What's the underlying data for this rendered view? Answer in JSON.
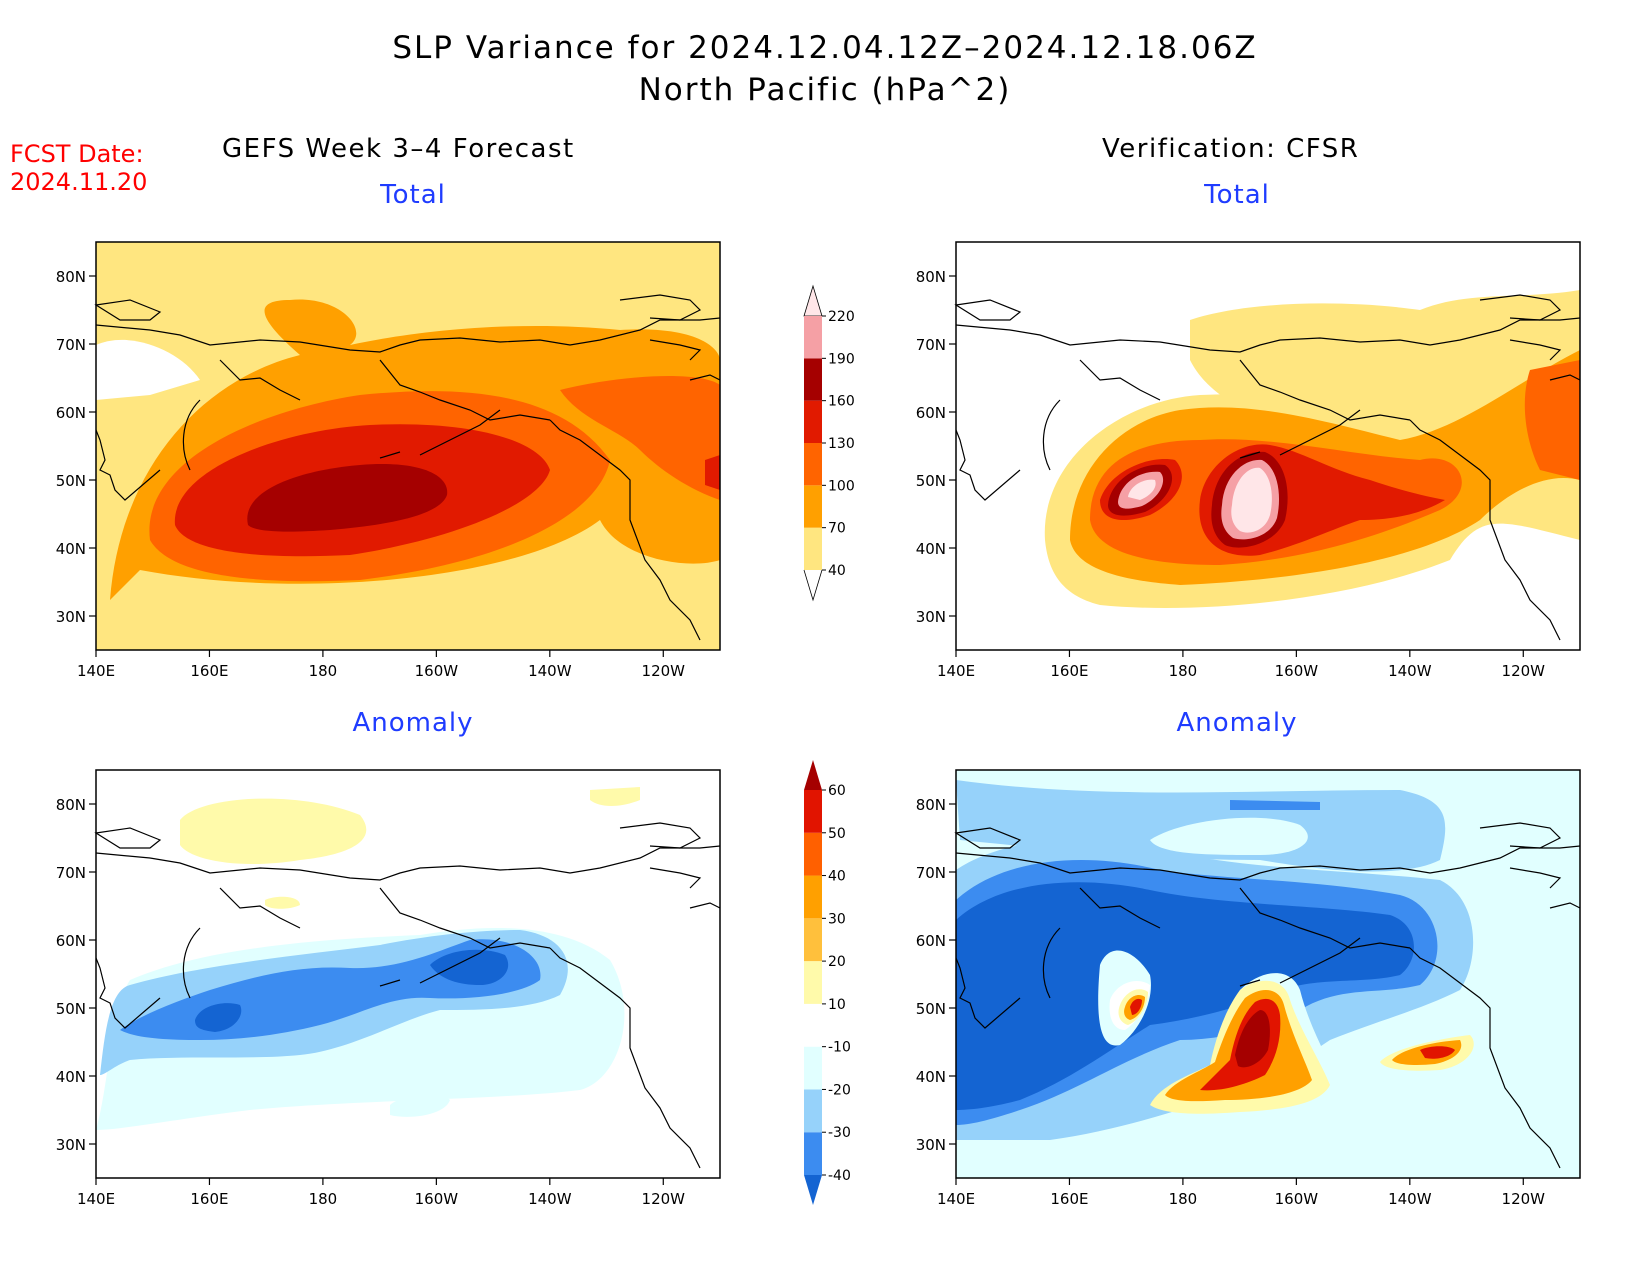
{
  "title": {
    "line1": "SLP Variance for 2024.12.04.12Z–2024.12.18.06Z",
    "line2": "North Pacific (hPa^2)"
  },
  "fcst_date": {
    "label": "FCST Date:",
    "value": "2024.11.20"
  },
  "columns": {
    "left": "GEFS Week 3–4 Forecast",
    "right": "Verification: CFSR"
  },
  "panels": [
    {
      "id": "fcst-total",
      "subtitle": "Total"
    },
    {
      "id": "verif-total",
      "subtitle": "Total"
    },
    {
      "id": "fcst-anomaly",
      "subtitle": "Anomaly"
    },
    {
      "id": "verif-anomaly",
      "subtitle": "Anomaly"
    }
  ],
  "axes": {
    "lon_labels": [
      "140E",
      "160E",
      "180",
      "160W",
      "140W",
      "120W"
    ],
    "lon_values": [
      140,
      160,
      180,
      200,
      220,
      240
    ],
    "lat_labels": [
      "80N",
      "70N",
      "60N",
      "50N",
      "40N",
      "30N"
    ],
    "lat_values": [
      80,
      70,
      60,
      50,
      40,
      30
    ],
    "lon_range": [
      140,
      250
    ],
    "lat_range": [
      25,
      85
    ]
  },
  "colorbars": {
    "total": {
      "labels": [
        "40",
        "70",
        "100",
        "130",
        "160",
        "190",
        "220"
      ],
      "colors": [
        "#ffe680",
        "#ffa000",
        "#ff6400",
        "#e11a00",
        "#a50000",
        "#f5a0a5",
        "#ffe6e8"
      ]
    },
    "anomaly": {
      "labels": [
        "-40",
        "-30",
        "-20",
        "-10",
        "10",
        "20",
        "30",
        "40",
        "50",
        "60"
      ],
      "colors": [
        "#1464d2",
        "#3c8cf0",
        "#96d2fa",
        "#e1ffff",
        "#ffffff",
        "#fffaaa",
        "#ffc03c",
        "#ffa000",
        "#ff6000",
        "#e11400",
        "#a50000"
      ]
    }
  },
  "colors": {
    "title_red": "#ff0000",
    "subtitle_blue": "#1f3cff"
  }
}
